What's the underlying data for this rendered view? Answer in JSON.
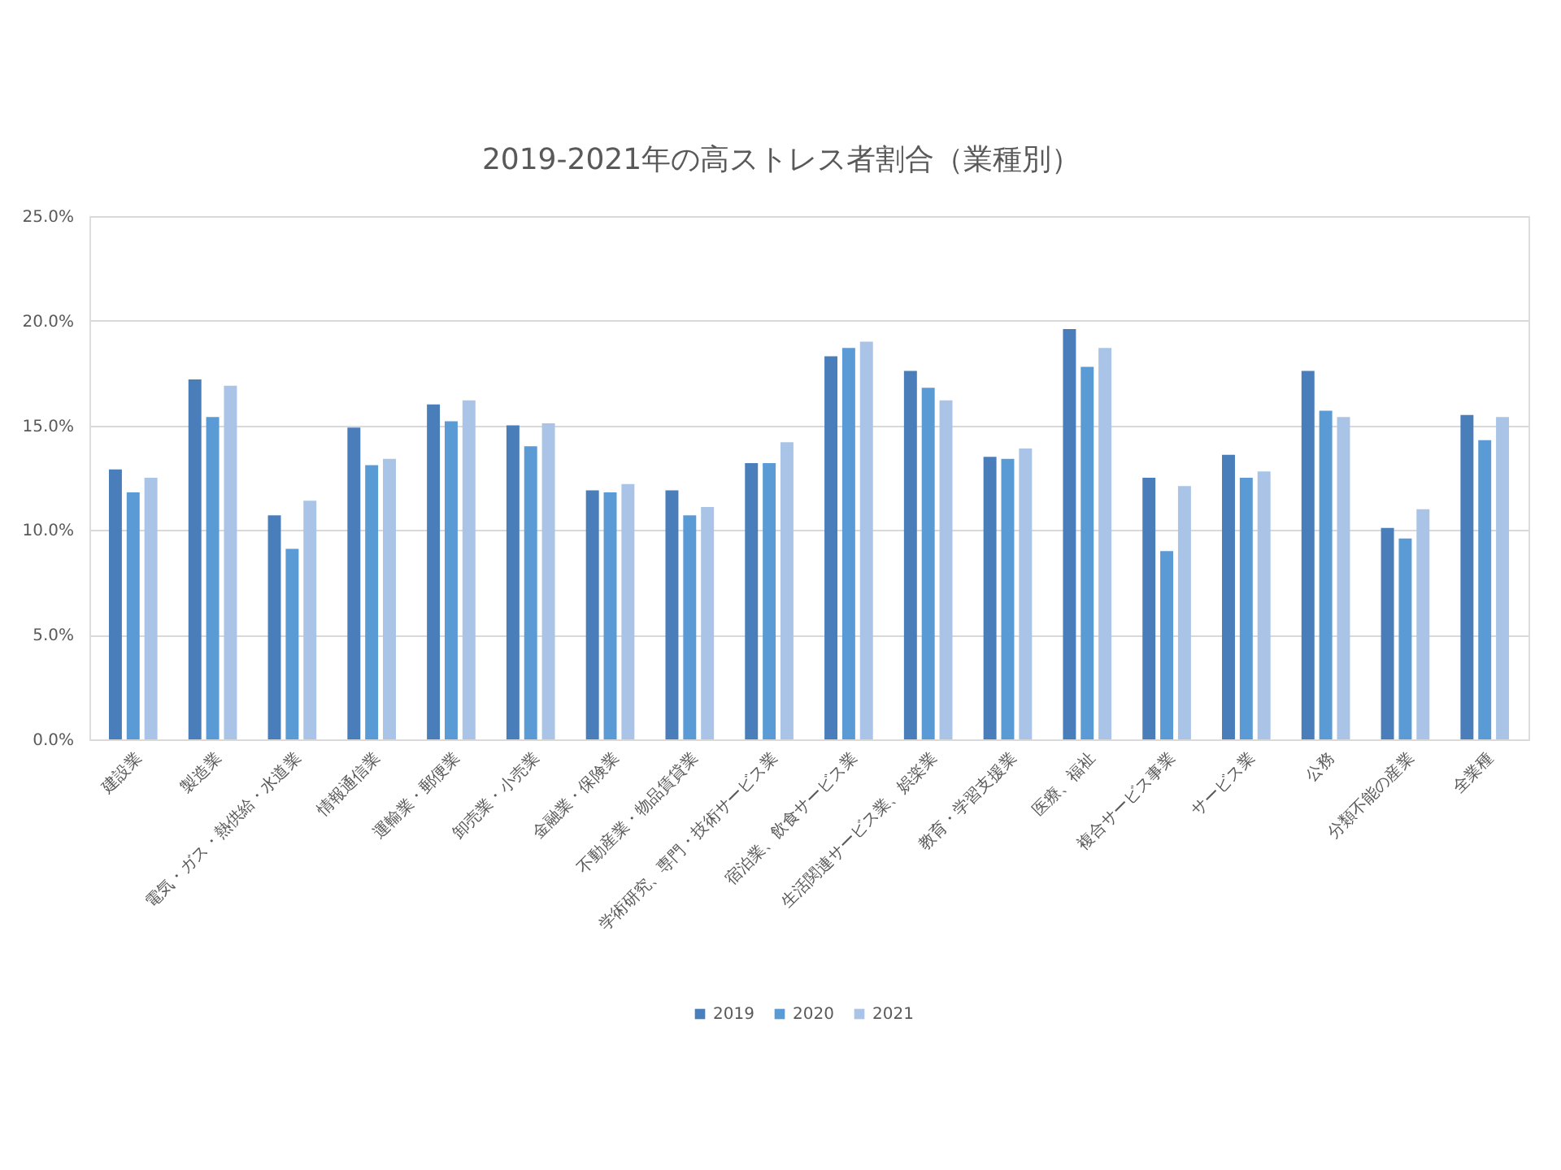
{
  "chart_data": {
    "type": "bar",
    "title": "2019-2021年の高ストレス者割合（業種別）",
    "categories": [
      "建設業",
      "製造業",
      "電気・ガス・熱供給・水道業",
      "情報通信業",
      "運輸業・郵便業",
      "卸売業・小売業",
      "金融業・保険業",
      "不動産業・物品賃貸業",
      "学術研究、専門・技術サービス業",
      "宿泊業、飲食サービス業",
      "生活関連サービス業、娯楽業",
      "教育・学習支援業",
      "医療、福祉",
      "複合サービス事業",
      "サービス業",
      "公務",
      "分類不能の産業",
      "全業種"
    ],
    "series": [
      {
        "name": "2019",
        "color": "#4a7ebb",
        "values": [
          12.9,
          17.2,
          10.7,
          14.9,
          16.0,
          15.0,
          11.9,
          11.9,
          13.2,
          18.3,
          17.6,
          13.5,
          19.6,
          12.5,
          13.6,
          17.6,
          10.1,
          15.5
        ]
      },
      {
        "name": "2020",
        "color": "#5b9bd5",
        "values": [
          11.8,
          15.4,
          9.1,
          13.1,
          15.2,
          14.0,
          11.8,
          10.7,
          13.2,
          18.7,
          16.8,
          13.4,
          17.8,
          9.0,
          12.5,
          15.7,
          9.6,
          14.3
        ]
      },
      {
        "name": "2021",
        "color": "#a9c4e6",
        "values": [
          12.5,
          16.9,
          11.4,
          13.4,
          16.2,
          15.1,
          12.2,
          11.1,
          14.2,
          19.0,
          16.2,
          13.9,
          18.7,
          12.1,
          12.8,
          15.4,
          11.0,
          15.4
        ]
      }
    ],
    "ylim": [
      0,
      25
    ],
    "yticks": [
      {
        "value": 0,
        "label": "0.0%"
      },
      {
        "value": 5,
        "label": "5.0%"
      },
      {
        "value": 10,
        "label": "10.0%"
      },
      {
        "value": 15,
        "label": "15.0%"
      },
      {
        "value": 20,
        "label": "20.0%"
      },
      {
        "value": 25,
        "label": "25.0%"
      }
    ],
    "grid": "y",
    "legend": "bottom"
  }
}
